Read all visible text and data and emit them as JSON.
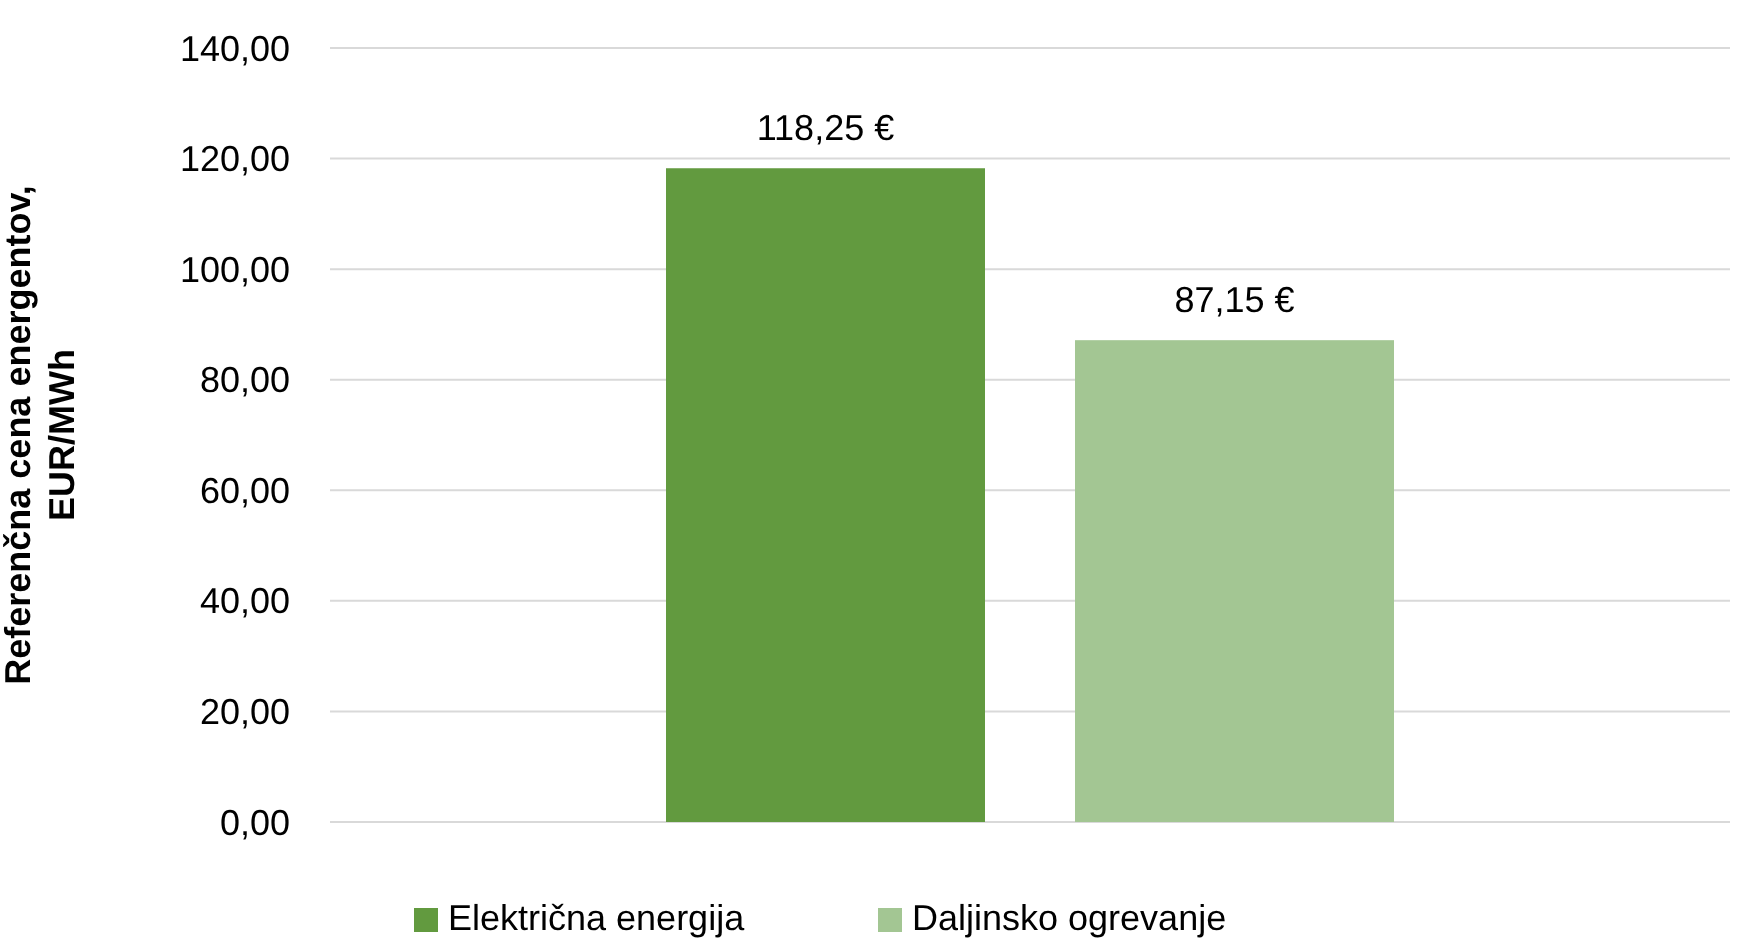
{
  "chart_data": {
    "type": "bar",
    "categories": [
      null
    ],
    "ylabel": "Referenčna cena energentov, EUR/MWh",
    "series": [
      {
        "name": "Električna energija",
        "color": "#629a3f",
        "values": [
          118.25
        ],
        "value_labels": [
          "118,25 €"
        ]
      },
      {
        "name": "Daljinsko ogrevanje",
        "color": "#a3c693",
        "values": [
          87.15
        ],
        "value_labels": [
          "87,15 €"
        ]
      }
    ],
    "ylim": [
      0,
      140
    ],
    "yticks": [
      {
        "value": 0,
        "label": "0,00"
      },
      {
        "value": 20,
        "label": "20,00"
      },
      {
        "value": 40,
        "label": "40,00"
      },
      {
        "value": 60,
        "label": "60,00"
      },
      {
        "value": 80,
        "label": "80,00"
      },
      {
        "value": 100,
        "label": "100,00"
      },
      {
        "value": 120,
        "label": "120,00"
      },
      {
        "value": 140,
        "label": "140,00"
      }
    ],
    "grid": "y",
    "legend": "bottom"
  }
}
